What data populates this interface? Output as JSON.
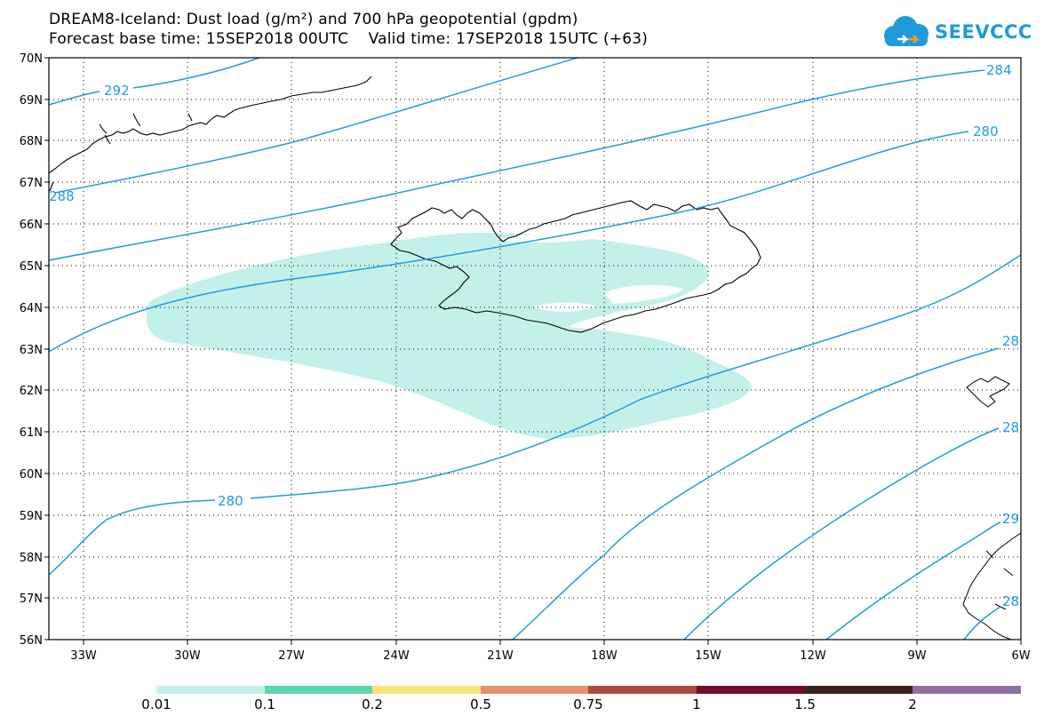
{
  "title_line1": "DREAM8-Iceland: Dust load (g/m²) and 700 hPa geopotential (gpdm)",
  "title_line2": "Forecast base time: 15SEP2018 00UTC    Valid time: 17SEP2018 15UTC (+63)",
  "logo_text": "SEEVCCC",
  "lat_labels": [
    "70N",
    "69N",
    "68N",
    "67N",
    "66N",
    "65N",
    "64N",
    "63N",
    "62N",
    "61N",
    "60N",
    "59N",
    "58N",
    "57N",
    "56N"
  ],
  "lon_labels": [
    "33W",
    "30W",
    "27W",
    "24W",
    "21W",
    "18W",
    "15W",
    "12W",
    "9W",
    "6W"
  ],
  "contour_labels": {
    "c292": "292",
    "c288": "288",
    "c284": "284",
    "c280_upper": "280",
    "c280_lower": "280",
    "c28a": "28",
    "c28b": "28",
    "c29": "29",
    "c2b": "28"
  },
  "colorbar": {
    "labels": [
      "0.01",
      "0.1",
      "0.2",
      "0.5",
      "0.75",
      "1",
      "1.5",
      "2"
    ],
    "colors": [
      "#c4f0ea",
      "#5ad8b0",
      "#f5e37b",
      "#e89070",
      "#a84c42",
      "#780a2e",
      "#3a2418",
      "#9170a0"
    ]
  },
  "colors": {
    "contour": "#1e9be6",
    "dust_low": "#c4f0ea",
    "logo": "#1e9bd8"
  }
}
